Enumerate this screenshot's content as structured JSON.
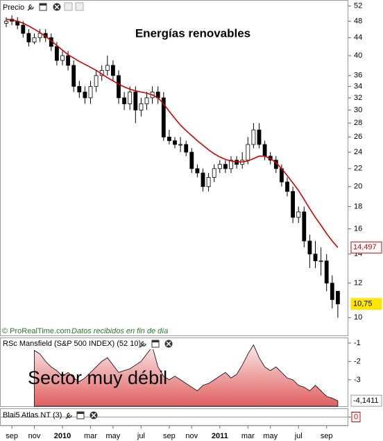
{
  "chart_data": [
    {
      "type": "candlestick",
      "title": "Energías renovables",
      "panel_label": "Precio",
      "credit": "© ProRealTime.com",
      "note": "Datos recibidos en fin de día",
      "categories": [
        null,
        "sep",
        null,
        null,
        null,
        "nov",
        null,
        null,
        null,
        null,
        "2010",
        null,
        null,
        null,
        null,
        "mar",
        null,
        null,
        null,
        "may",
        null,
        null,
        null,
        null,
        "jul",
        null,
        null,
        null,
        null,
        "sep",
        null,
        null,
        null,
        "nov",
        null,
        null,
        null,
        null,
        "2011",
        null,
        null,
        null,
        null,
        "mar",
        null,
        null,
        null,
        "may",
        null,
        null,
        null,
        null,
        "jul",
        null,
        null,
        null,
        null,
        "sep",
        null,
        null
      ],
      "log": true,
      "ylim": [
        9.1,
        53.5
      ],
      "yticks": [
        10,
        12,
        14,
        16,
        18,
        20,
        22,
        24,
        26,
        28,
        30,
        32,
        34,
        36,
        40,
        44,
        48,
        52
      ],
      "up_color": "#ffffff",
      "down_color": "#000000",
      "open": [
        47.5,
        48.5,
        48,
        47,
        45,
        43,
        44,
        45,
        44,
        42,
        39,
        40,
        38,
        34,
        33,
        32,
        34,
        36,
        37,
        38,
        36,
        32,
        31,
        33,
        30,
        31,
        32,
        33,
        32,
        26,
        25.5,
        25,
        25,
        24,
        22,
        21.5,
        20,
        21,
        22,
        22.5,
        22,
        23,
        22.5,
        23,
        25,
        27,
        25,
        23.5,
        23,
        22,
        20.5,
        19.5,
        17,
        17.5,
        15,
        14,
        13.5,
        13.5,
        12,
        11.5
      ],
      "high": [
        49,
        49.5,
        49,
        48,
        46,
        45,
        46,
        46,
        45,
        43,
        41,
        41,
        39,
        35,
        34,
        35,
        37,
        38,
        40,
        39,
        37,
        33,
        34,
        34,
        32,
        33,
        34,
        34,
        33,
        27,
        26,
        26,
        25.5,
        24.5,
        22.5,
        22,
        21.5,
        22.5,
        23,
        23,
        23.5,
        23.5,
        24,
        26,
        28,
        28,
        25.5,
        24,
        23.5,
        22.5,
        21,
        20,
        18,
        18,
        15.5,
        15,
        14.5,
        14,
        12.5,
        11.5
      ],
      "low": [
        46.5,
        47,
        46,
        44,
        42,
        42.5,
        43,
        43,
        41,
        38,
        38,
        37,
        33,
        32,
        31,
        31,
        33,
        35,
        36,
        35,
        31,
        30,
        30,
        28,
        29,
        30,
        31,
        31,
        25.5,
        25,
        24.5,
        24,
        23.5,
        21.5,
        21,
        19.5,
        19.5,
        20.5,
        21.5,
        21.5,
        21.5,
        22,
        22,
        22.5,
        24.5,
        24.5,
        23,
        22.5,
        21.5,
        20,
        19,
        16.5,
        16.5,
        14.5,
        13,
        13,
        12.5,
        11.5,
        10.5,
        10
      ],
      "close": [
        48,
        48,
        47,
        45,
        43,
        44,
        45,
        44,
        42,
        39,
        40,
        38,
        34,
        33,
        32,
        34,
        36,
        37,
        38,
        36,
        32,
        31,
        33,
        30,
        31,
        32,
        33,
        32,
        26,
        25.5,
        25,
        25,
        24,
        22,
        21.5,
        20,
        21,
        22,
        22.5,
        22,
        23,
        22.5,
        23,
        25,
        27,
        25,
        23.5,
        23,
        22,
        20.5,
        19.5,
        17,
        17.5,
        15,
        14,
        13.5,
        13.5,
        12,
        11,
        10.75
      ],
      "close_label": "10,75",
      "close_label_color": "#ffe600",
      "series": [
        {
          "color": "#d40000",
          "last_label": "14,497",
          "values": [
            48.5,
            48.3,
            48,
            47.5,
            46.8,
            46,
            45.2,
            44.3,
            43.3,
            42.2,
            41.2,
            40.2,
            39.5,
            38.8,
            38.2,
            37.6,
            37,
            36.3,
            35.6,
            35,
            34.4,
            33.9,
            33.5,
            33.2,
            33,
            32.8,
            32.5,
            32,
            31,
            29.8,
            28.7,
            27.7,
            26.9,
            26.2,
            25.5,
            24.9,
            24.3,
            23.8,
            23.4,
            23.1,
            22.9,
            22.8,
            22.8,
            22.9,
            23.2,
            23.5,
            23.5,
            23.2,
            22.7,
            22,
            21.2,
            20.4,
            19.6,
            18.7,
            17.8,
            17,
            16.3,
            15.6,
            15,
            14.497
          ]
        }
      ]
    },
    {
      "type": "area",
      "panel_label": "RSc Mansfield (S&P 500 INDEX) (52 10)",
      "annotation": "Sector muy débil",
      "ylim": [
        -4.44,
        -0.74
      ],
      "yticks": [
        -1,
        -2,
        -3
      ],
      "series": [
        {
          "color": "#e06060",
          "last_label": "-4,1411",
          "values": [
            null,
            null,
            null,
            null,
            null,
            -1.4,
            -1.6,
            -2.0,
            -2.3,
            -2.5,
            -2.8,
            -2.6,
            -2.9,
            -3.1,
            -2.9,
            -2.6,
            -2.3,
            -2.0,
            -1.8,
            -2.2,
            -2.6,
            -2.5,
            -2.4,
            -2.2,
            -2.0,
            -1.6,
            -1.2,
            -2.3,
            -2.8,
            -3.0,
            -2.8,
            -3.0,
            -3.2,
            -3.4,
            -3.6,
            -3.3,
            -3.2,
            -3.0,
            -2.8,
            -2.6,
            -2.9,
            -2.7,
            -2.2,
            -1.6,
            -1.1,
            -1.8,
            -2.3,
            -2.5,
            -2.3,
            -2.6,
            -2.9,
            -3.0,
            -3.3,
            -3.4,
            -3.6,
            -3.3,
            -3.6,
            -3.9,
            -4.0,
            -4.1411
          ]
        }
      ]
    },
    {
      "type": "line",
      "panel_label": "Blai5 Atlas NT (3)",
      "ylim": [
        -1,
        1
      ],
      "yticks": [
        0
      ],
      "tick_color": "#d40000"
    }
  ]
}
